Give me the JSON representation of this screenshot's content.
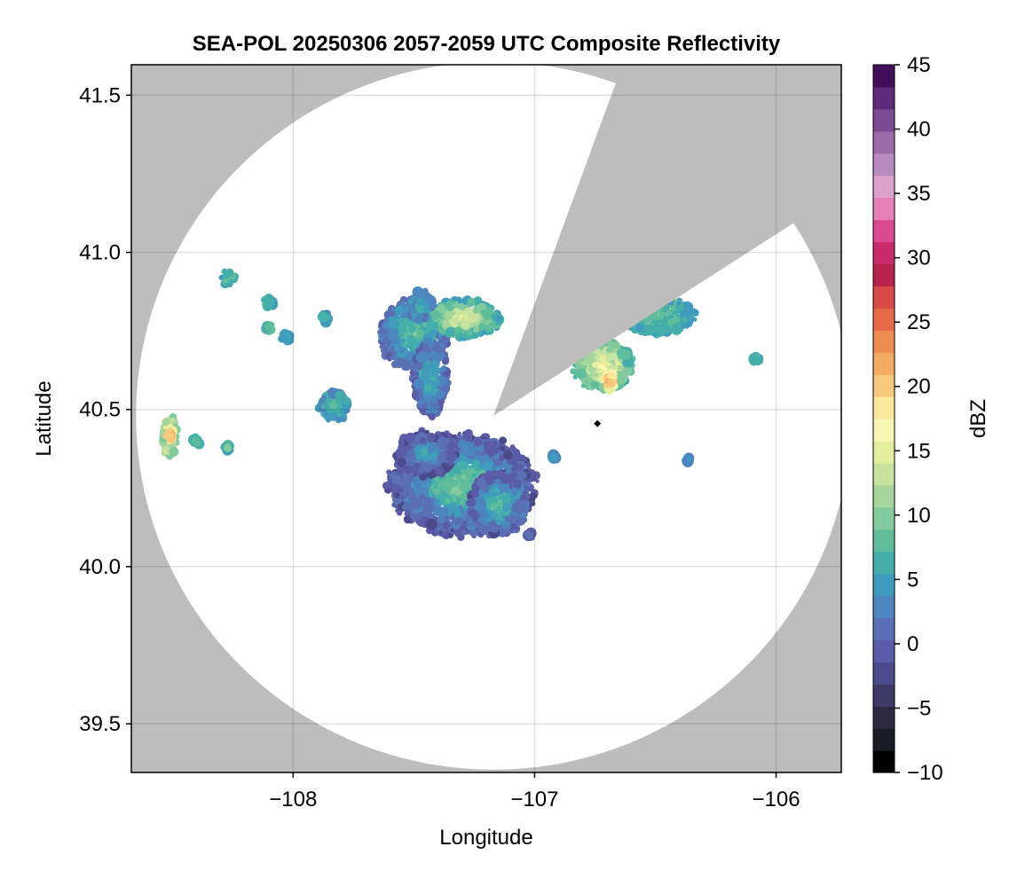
{
  "chart_data": {
    "type": "heatmap",
    "title": "SEA-POL 20250306 2057-2059 UTC Composite Reflectivity",
    "xlabel": "Longitude",
    "ylabel": "Latitude",
    "xlim": [
      -108.67,
      -105.73
    ],
    "ylim": [
      39.345,
      41.597
    ],
    "x_ticks": [
      -108,
      -107,
      -106
    ],
    "x_tick_labels": [
      "−108",
      "−107",
      "−106"
    ],
    "y_ticks": [
      39.5,
      40.0,
      40.5,
      41.0,
      41.5
    ],
    "y_tick_labels": [
      "39.5",
      "40.0",
      "40.5",
      "41.0",
      "41.5"
    ],
    "grid": true,
    "background_color": "#bdbdbd",
    "colorbar": {
      "label": "dBZ",
      "range": [
        -10,
        45
      ],
      "step": 2.5,
      "ticks": [
        -10,
        -5,
        0,
        5,
        10,
        15,
        20,
        25,
        30,
        35,
        40,
        45
      ],
      "tick_labels": [
        "−10",
        "−5",
        "0",
        "5",
        "10",
        "15",
        "20",
        "25",
        "30",
        "35",
        "40",
        "45"
      ],
      "colors": [
        "#000000",
        "#1a1a24",
        "#2e2a42",
        "#3f3a66",
        "#4b4a8c",
        "#5a5ca8",
        "#5b6fb5",
        "#4d86be",
        "#3f9cbc",
        "#45aeaa",
        "#5fbd9c",
        "#83ca9c",
        "#a6d69c",
        "#c7e39e",
        "#e3ef9d",
        "#f7f6b2",
        "#fbe79a",
        "#f6c97d",
        "#f3ab64",
        "#ee8b4f",
        "#e66a47",
        "#d84a47",
        "#b8234c",
        "#c82a6a",
        "#d94a92",
        "#e680b8",
        "#dea0cc",
        "#b98abf",
        "#9b6aab",
        "#7c4a93",
        "#5e2a7a",
        "#420d5a"
      ]
    },
    "radar": {
      "site": [
        -107.17,
        40.48
      ],
      "range_km": 125,
      "blanked_sector_azimuth_deg": [
        20,
        57
      ],
      "marker": [
        -106.74,
        40.455
      ]
    },
    "echoes": [
      {
        "lon": -107.3,
        "lat": 40.26,
        "rx": 0.3,
        "ry": 0.16,
        "dbz": 14,
        "peak": 18,
        "edge": 3
      },
      {
        "lon": -107.45,
        "lat": 40.36,
        "rx": 0.12,
        "ry": 0.07,
        "dbz": 9,
        "peak": 13,
        "edge": 2
      },
      {
        "lon": -107.15,
        "lat": 40.2,
        "rx": 0.12,
        "ry": 0.1,
        "dbz": 12,
        "peak": 17,
        "edge": 4
      },
      {
        "lon": -107.5,
        "lat": 40.74,
        "rx": 0.14,
        "ry": 0.11,
        "dbz": 13,
        "peak": 17,
        "edge": 6
      },
      {
        "lon": -107.43,
        "lat": 40.6,
        "rx": 0.07,
        "ry": 0.12,
        "dbz": 11,
        "peak": 15,
        "edge": 5
      },
      {
        "lon": -107.3,
        "lat": 40.79,
        "rx": 0.16,
        "ry": 0.06,
        "dbz": 22,
        "peak": 27,
        "edge": 12
      },
      {
        "lon": -107.47,
        "lat": 40.83,
        "rx": 0.05,
        "ry": 0.05,
        "dbz": 11,
        "peak": 14,
        "edge": 8
      },
      {
        "lon": -106.72,
        "lat": 40.64,
        "rx": 0.12,
        "ry": 0.08,
        "dbz": 23,
        "peak": 30,
        "edge": 15
      },
      {
        "lon": -106.69,
        "lat": 40.59,
        "rx": 0.03,
        "ry": 0.03,
        "dbz": 34,
        "peak": 38,
        "edge": 28
      },
      {
        "lon": -106.5,
        "lat": 40.8,
        "rx": 0.16,
        "ry": 0.06,
        "dbz": 15,
        "peak": 18,
        "edge": 12
      },
      {
        "lon": -107.83,
        "lat": 40.51,
        "rx": 0.06,
        "ry": 0.05,
        "dbz": 13,
        "peak": 16,
        "edge": 10
      },
      {
        "lon": -108.51,
        "lat": 40.42,
        "rx": 0.03,
        "ry": 0.07,
        "dbz": 24,
        "peak": 32,
        "edge": 19
      },
      {
        "lon": -108.51,
        "lat": 40.42,
        "rx": 0.015,
        "ry": 0.02,
        "dbz": 34,
        "peak": 38,
        "edge": 30
      },
      {
        "lon": -108.4,
        "lat": 40.4,
        "rx": 0.015,
        "ry": 0.015,
        "dbz": 15,
        "peak": 17,
        "edge": 13
      },
      {
        "lon": -108.27,
        "lat": 40.38,
        "rx": 0.015,
        "ry": 0.012,
        "dbz": 16,
        "peak": 18,
        "edge": 14
      },
      {
        "lon": -108.27,
        "lat": 40.92,
        "rx": 0.03,
        "ry": 0.025,
        "dbz": 15,
        "peak": 17,
        "edge": 13
      },
      {
        "lon": -108.1,
        "lat": 40.84,
        "rx": 0.02,
        "ry": 0.015,
        "dbz": 14,
        "peak": 16,
        "edge": 13
      },
      {
        "lon": -107.87,
        "lat": 40.79,
        "rx": 0.02,
        "ry": 0.015,
        "dbz": 13,
        "peak": 15,
        "edge": 11
      },
      {
        "lon": -108.03,
        "lat": 40.73,
        "rx": 0.02,
        "ry": 0.015,
        "dbz": 13,
        "peak": 15,
        "edge": 12
      },
      {
        "lon": -108.1,
        "lat": 40.76,
        "rx": 0.012,
        "ry": 0.01,
        "dbz": 16,
        "peak": 17,
        "edge": 15
      },
      {
        "lon": -106.08,
        "lat": 40.66,
        "rx": 0.02,
        "ry": 0.01,
        "dbz": 15,
        "peak": 16,
        "edge": 14
      },
      {
        "lon": -106.36,
        "lat": 40.34,
        "rx": 0.012,
        "ry": 0.008,
        "dbz": 10,
        "peak": 11,
        "edge": 9
      },
      {
        "lon": -106.92,
        "lat": 40.35,
        "rx": 0.01,
        "ry": 0.008,
        "dbz": 9,
        "peak": 10,
        "edge": 8
      },
      {
        "lon": -107.02,
        "lat": 40.1,
        "rx": 0.01,
        "ry": 0.01,
        "dbz": 6,
        "peak": 7,
        "edge": 5
      }
    ]
  }
}
